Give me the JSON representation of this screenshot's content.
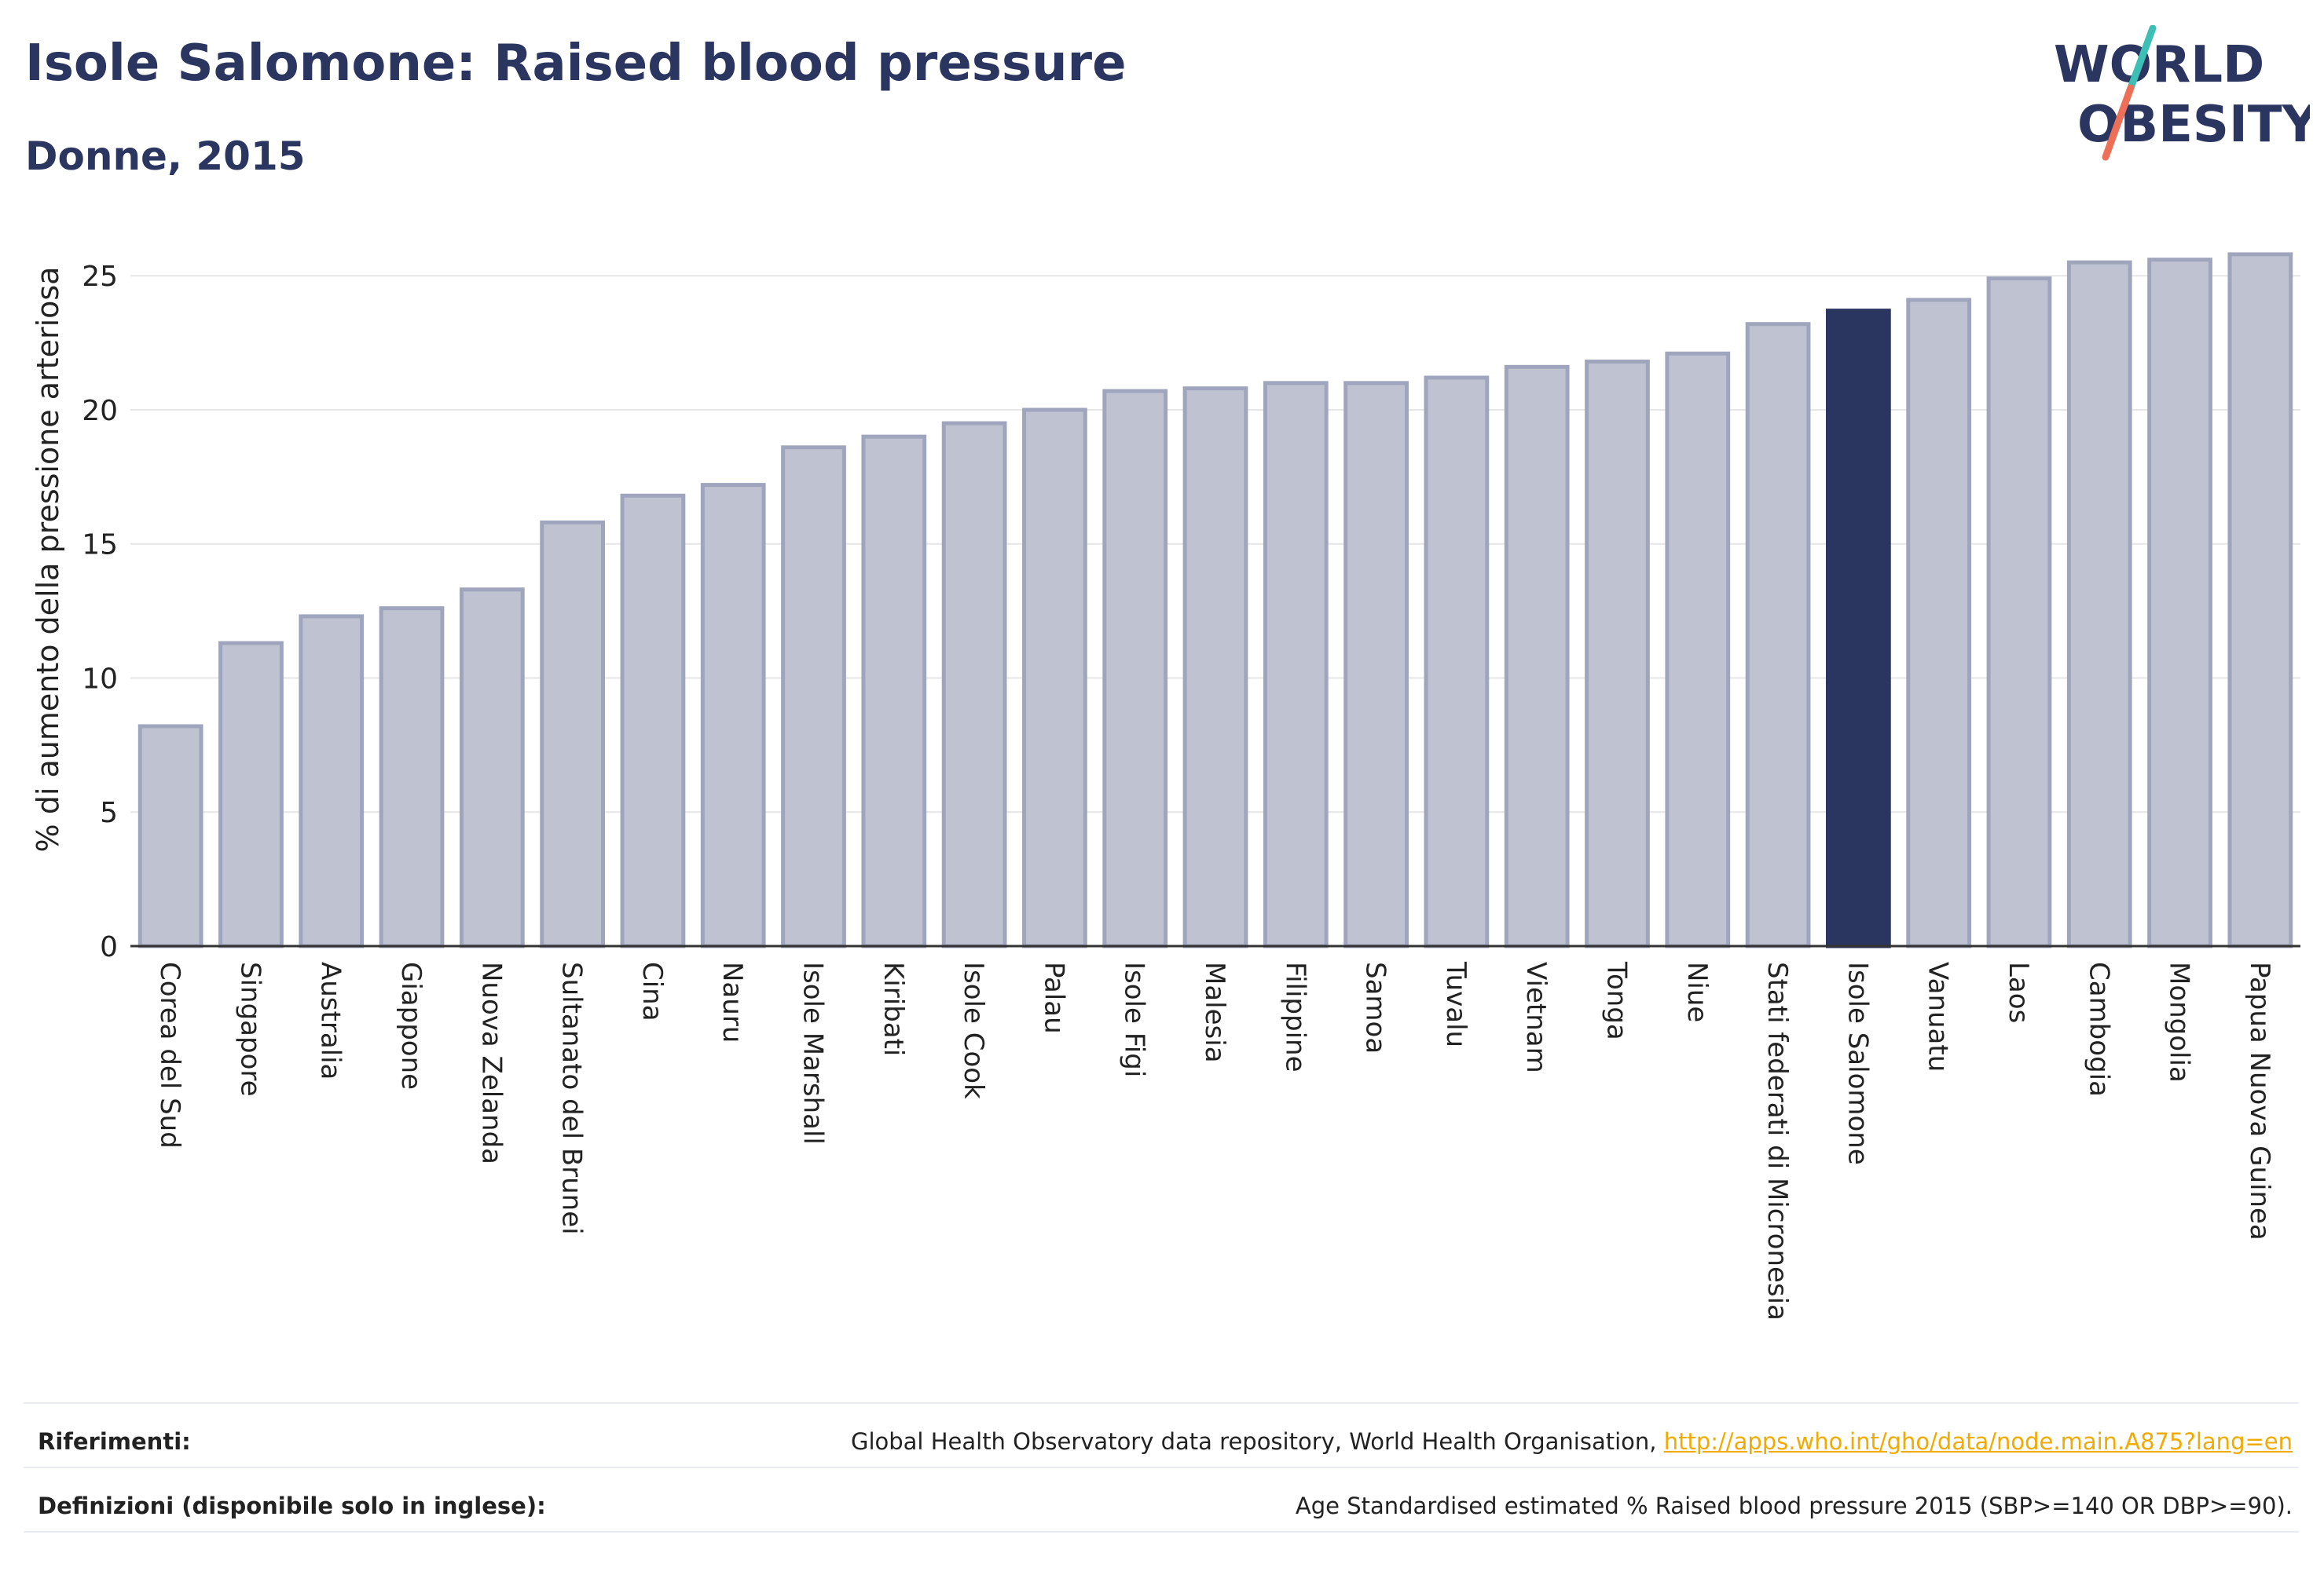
{
  "header": {
    "title": "Isole Salomone: Raised blood pressure",
    "subtitle": "Donne, 2015"
  },
  "logo": {
    "line1": "WORLD",
    "line2": "OBESITY",
    "text_color": "#2a3560",
    "slash_colors": [
      "#3dbfb6",
      "#ee6f57"
    ]
  },
  "colors": {
    "highlight_bar": "#2a3560",
    "default_bar_fill": "#bfc3d1",
    "default_bar_stroke": "#9fa5bd",
    "gridline": "#e6e6e6",
    "axis": "#333333"
  },
  "chart_data": {
    "type": "bar",
    "title": "",
    "xlabel": "",
    "ylabel": "% di aumento della pressione arteriosa",
    "ylim": [
      0,
      26.5
    ],
    "yticks": [
      0,
      5,
      10,
      15,
      20,
      25
    ],
    "grid": true,
    "highlight": "Isole Salomone",
    "categories": [
      "Corea del Sud",
      "Singapore",
      "Australia",
      "Giappone",
      "Nuova Zelanda",
      "Sultanato del Brunei",
      "Cina",
      "Nauru",
      "Isole Marshall",
      "Kiribati",
      "Isole Cook",
      "Palau",
      "Isole Figi",
      "Malesia",
      "Filippine",
      "Samoa",
      "Tuvalu",
      "Vietnam",
      "Tonga",
      "Niue",
      "Stati federati di Micronesia",
      "Isole Salomone",
      "Vanuatu",
      "Laos",
      "Cambogia",
      "Mongolia",
      "Papua Nuova Guinea"
    ],
    "values": [
      8.2,
      11.3,
      12.3,
      12.6,
      13.3,
      15.8,
      16.8,
      17.2,
      18.6,
      19.0,
      19.5,
      20.0,
      20.7,
      20.8,
      21.0,
      21.0,
      21.2,
      21.6,
      21.8,
      22.1,
      23.2,
      23.7,
      24.1,
      24.9,
      25.5,
      25.6,
      25.8
    ]
  },
  "footer": {
    "references_label": "Riferimenti:",
    "references_text": "Global Health Observatory data repository, World Health Organisation,",
    "references_link": "http://apps.who.int/gho/data/node.main.A875?lang=en",
    "definitions_label": "Definizioni (disponibile solo in inglese):",
    "definitions_text": "Age Standardised estimated % Raised blood pressure 2015 (SBP>=140 OR DBP>=90)."
  }
}
